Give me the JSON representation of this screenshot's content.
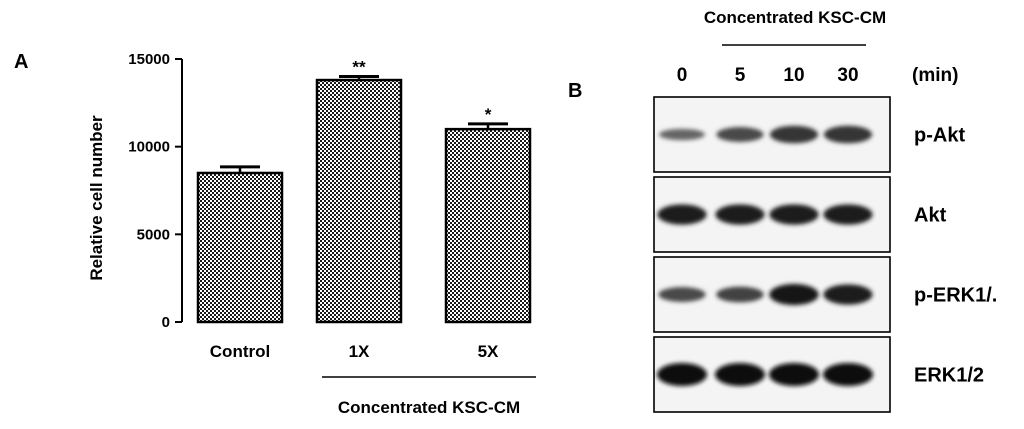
{
  "panel_a": {
    "letter": "A"
  },
  "panel_b": {
    "letter": "B",
    "header": "Concentrated KSC-CM",
    "time_unit": "(min)",
    "time_points": [
      "0",
      "5",
      "10",
      "30"
    ],
    "blots": [
      {
        "label": "p-Akt",
        "intensity": [
          0.35,
          0.55,
          0.7,
          0.7
        ]
      },
      {
        "label": "Akt",
        "intensity": [
          0.85,
          0.85,
          0.85,
          0.85
        ]
      },
      {
        "label": "p-ERK1/.",
        "intensity": [
          0.55,
          0.6,
          0.9,
          0.85
        ]
      },
      {
        "label": "ERK1/2",
        "intensity": [
          1.0,
          1.0,
          1.0,
          1.0
        ]
      }
    ]
  },
  "chart_data": {
    "type": "bar",
    "categories": [
      "Control",
      "1X",
      "5X"
    ],
    "values": [
      8500,
      13800,
      11000
    ],
    "errors": [
      350,
      200,
      300
    ],
    "significance": [
      "",
      "**",
      "*"
    ],
    "title": "",
    "xlabel": "",
    "ylabel": "Relative cell number",
    "ylim": [
      0,
      15000
    ],
    "yticks": [
      "0",
      "5000",
      "10000",
      "15000"
    ],
    "group_label": "Concentrated KSC-CM",
    "bar_fill": "checkered"
  }
}
